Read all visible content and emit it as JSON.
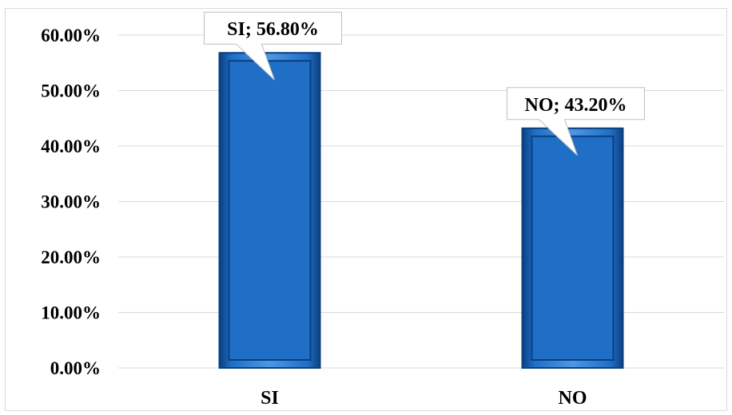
{
  "chart_data": {
    "type": "bar",
    "categories": [
      "SI",
      "NO"
    ],
    "values": [
      56.8,
      43.2
    ],
    "value_format": "percent",
    "data_labels": [
      "SI; 56.80%",
      "NO; 43.20%"
    ],
    "ylim": [
      0,
      60
    ],
    "yticks": [
      "0.00%",
      "10.00%",
      "20.00%",
      "30.00%",
      "40.00%",
      "50.00%",
      "60.00%"
    ],
    "ytick_values": [
      0,
      10,
      20,
      30,
      40,
      50,
      60
    ],
    "title": "",
    "xlabel": "",
    "ylabel": "",
    "grid": true,
    "legend": "none",
    "colors": {
      "bar": "#1f6fc6",
      "bar_edge_dark": "#0b3f80",
      "bar_highlight": "#4d97e4",
      "grid": "#d9d9d9",
      "label_border": "#bfbfbf"
    }
  }
}
